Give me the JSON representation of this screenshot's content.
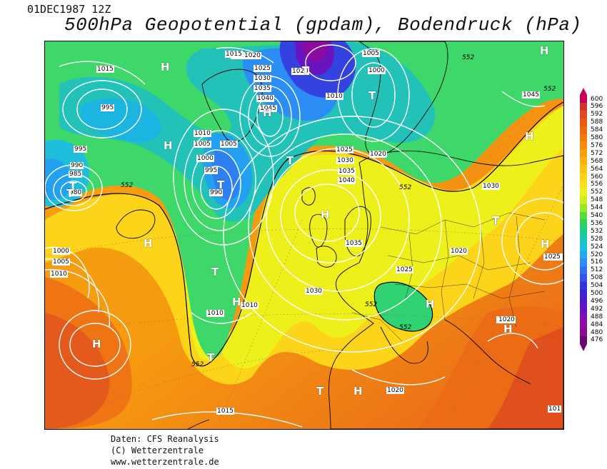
{
  "header": {
    "run_label": "01DEC1987 12Z",
    "title": "500hPa Geopotential (gpdam), Bodendruck (hPa)"
  },
  "credits": {
    "line1": "Daten: CFS Reanalysis",
    "line2": "(C) Wetterzentrale",
    "line3": "www.wetterzentrale.de"
  },
  "legend": {
    "levels": [
      "600",
      "596",
      "592",
      "588",
      "584",
      "580",
      "576",
      "572",
      "568",
      "564",
      "560",
      "556",
      "552",
      "548",
      "544",
      "540",
      "536",
      "532",
      "528",
      "524",
      "520",
      "516",
      "512",
      "508",
      "504",
      "500",
      "496",
      "492",
      "488",
      "484",
      "480",
      "476"
    ],
    "colors": [
      "#c8005a",
      "#d2322d",
      "#e04a1e",
      "#e85a14",
      "#ee6a10",
      "#f27a0c",
      "#f68c0c",
      "#fa9e10",
      "#fcb012",
      "#fdc216",
      "#fdd41a",
      "#f8e21e",
      "#eef01c",
      "#c8f01e",
      "#96e828",
      "#5ad83c",
      "#2ed25a",
      "#1ccc8c",
      "#18c8b4",
      "#1cbedc",
      "#24aaf0",
      "#2c8ef4",
      "#3070f0",
      "#3252e8",
      "#3434dc",
      "#3e22d0",
      "#5018c8",
      "#6612c0",
      "#7c10b4",
      "#8c0ca4",
      "#8a0a90",
      "#6c0670"
    ]
  },
  "map": {
    "high_marker": "H",
    "low_marker": "T",
    "isobar_labels": [
      {
        "text": "1015"
      },
      {
        "text": "1020"
      },
      {
        "text": "1020"
      },
      {
        "text": "1005"
      },
      {
        "text": "1025"
      },
      {
        "text": "1030"
      },
      {
        "text": "1035"
      },
      {
        "text": "1040"
      },
      {
        "text": "1045"
      },
      {
        "text": "1000"
      },
      {
        "text": "1010"
      },
      {
        "text": "1045"
      },
      {
        "text": "995"
      },
      {
        "text": "995"
      },
      {
        "text": "990"
      },
      {
        "text": "985"
      },
      {
        "text": "980"
      },
      {
        "text": "1010"
      },
      {
        "text": "1005"
      },
      {
        "text": "1000"
      },
      {
        "text": "995"
      },
      {
        "text": "990"
      },
      {
        "text": "1005"
      },
      {
        "text": "1020"
      },
      {
        "text": "1025"
      },
      {
        "text": "1030"
      },
      {
        "text": "1035"
      },
      {
        "text": "1040"
      },
      {
        "text": "1030"
      },
      {
        "text": "1000"
      },
      {
        "text": "1005"
      },
      {
        "text": "1010"
      },
      {
        "text": "1035"
      },
      {
        "text": "1020"
      },
      {
        "text": "1025"
      },
      {
        "text": "1025"
      },
      {
        "text": "1030"
      },
      {
        "text": "1010"
      },
      {
        "text": "1010"
      },
      {
        "text": "1020"
      },
      {
        "text": "1020"
      },
      {
        "text": "1025"
      },
      {
        "text": "1020"
      },
      {
        "text": "1015"
      },
      {
        "text": "1015"
      },
      {
        "text": "1020"
      },
      {
        "text": "101"
      }
    ],
    "contour_labels": [
      {
        "text": "552"
      },
      {
        "text": "552"
      },
      {
        "text": "552"
      },
      {
        "text": "552"
      },
      {
        "text": "552"
      },
      {
        "text": "552"
      },
      {
        "text": "552"
      }
    ],
    "pressure_centers": [
      {
        "type": "H"
      },
      {
        "type": "T"
      },
      {
        "type": "T"
      },
      {
        "type": "H"
      },
      {
        "type": "H"
      },
      {
        "type": "T"
      },
      {
        "type": "H"
      },
      {
        "type": "H"
      },
      {
        "type": "T"
      },
      {
        "type": "T"
      },
      {
        "type": "H"
      },
      {
        "type": "T"
      },
      {
        "type": "H"
      },
      {
        "type": "T"
      },
      {
        "type": "H"
      },
      {
        "type": "T"
      },
      {
        "type": "H"
      },
      {
        "type": "H"
      },
      {
        "type": "T"
      },
      {
        "type": "H"
      },
      {
        "type": "T"
      },
      {
        "type": "H"
      },
      {
        "type": "H"
      },
      {
        "type": "T"
      },
      {
        "type": "H"
      }
    ]
  }
}
